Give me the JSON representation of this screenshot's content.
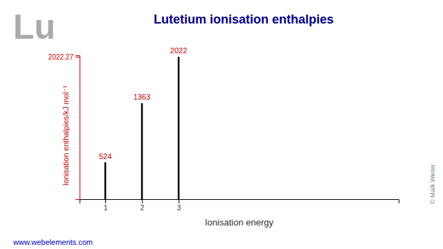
{
  "chart_data": {
    "type": "bar",
    "title": "Lutetium ionisation enthalpies",
    "xlabel": "Ionisation energy",
    "ylabel": "Ionisation enthalpies/kJ mol⁻¹",
    "x": [
      1,
      2,
      3
    ],
    "values": [
      524,
      1363,
      2022
    ],
    "color": "#000000",
    "xlim": [
      0.3,
      9
    ],
    "xticks": [
      1,
      2,
      3
    ],
    "ylim": [
      0,
      2042.4927
    ],
    "yticks": [
      2022.27
    ],
    "data_labels": true,
    "annotations": [
      "Lu",
      "© Mark Winter",
      "www.webelements.com"
    ]
  }
}
